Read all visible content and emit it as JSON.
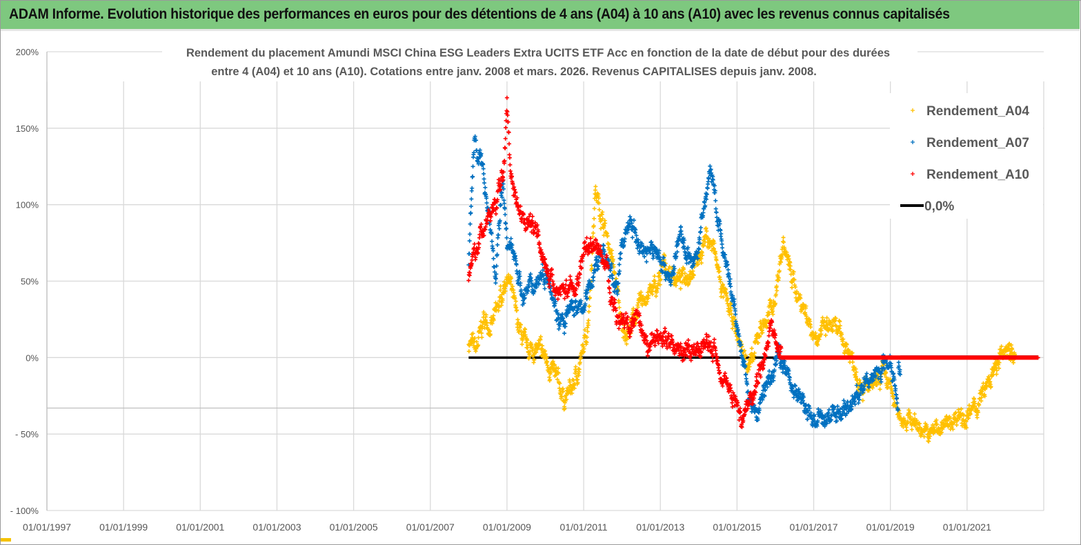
{
  "header": {
    "title": "ADAM Informe. Evolution historique des performances en euros pour des détentions de 4 ans (A04) à 10 ans (A10) avec les revenus connus capitalisés"
  },
  "chart_data": {
    "type": "scatter",
    "title": "Rendement du placement Amundi MSCI  China ESG Leaders Extra UCITS ETF Acc en fonction de la date de début pour des durées",
    "subtitle": "entre 4 (A04) et 10 ans (A10). Cotations entre janv. 2008 et mars. 2026. Revenus CAPITALISES depuis janv. 2008.",
    "xlabel": "",
    "ylabel": "",
    "xlim": [
      "01/01/1997",
      "01/01/2023"
    ],
    "ylim": [
      -100,
      200
    ],
    "x_ticks": [
      "01/01/1997",
      "01/01/1999",
      "01/01/2001",
      "01/01/2003",
      "01/01/2005",
      "01/01/2007",
      "01/01/2009",
      "01/01/2011",
      "01/01/2013",
      "01/01/2015",
      "01/01/2017",
      "01/01/2019",
      "01/01/2021"
    ],
    "y_ticks": [
      "200%",
      "150%",
      "100%",
      "50%",
      "0%",
      "- 50%",
      "- 100%"
    ],
    "y_tick_values": [
      200,
      150,
      100,
      50,
      0,
      -50,
      -100
    ],
    "horizontal_axis_crossing": -33,
    "grid": true,
    "legend_position": "top-right",
    "series": [
      {
        "name": "Rendement_A04",
        "marker": "plus",
        "color": "#ffc000",
        "points": [
          [
            2008.0,
            10
          ],
          [
            2008.2,
            5
          ],
          [
            2008.4,
            25
          ],
          [
            2008.6,
            20
          ],
          [
            2008.8,
            35
          ],
          [
            2009.0,
            55
          ],
          [
            2009.1,
            45
          ],
          [
            2009.3,
            20
          ],
          [
            2009.5,
            5
          ],
          [
            2009.8,
            5
          ],
          [
            2010.0,
            0
          ],
          [
            2010.3,
            -15
          ],
          [
            2010.5,
            -27
          ],
          [
            2010.7,
            -20
          ],
          [
            2010.9,
            -5
          ],
          [
            2011.0,
            5
          ],
          [
            2011.1,
            20
          ],
          [
            2011.2,
            60
          ],
          [
            2011.3,
            110
          ],
          [
            2011.5,
            90
          ],
          [
            2011.7,
            70
          ],
          [
            2011.9,
            40
          ],
          [
            2012.0,
            15
          ],
          [
            2012.2,
            20
          ],
          [
            2012.4,
            30
          ],
          [
            2012.6,
            40
          ],
          [
            2012.9,
            45
          ],
          [
            2013.1,
            60
          ],
          [
            2013.3,
            55
          ],
          [
            2013.5,
            50
          ],
          [
            2013.7,
            55
          ],
          [
            2014.0,
            65
          ],
          [
            2014.2,
            80
          ],
          [
            2014.4,
            70
          ],
          [
            2014.6,
            45
          ],
          [
            2014.8,
            30
          ],
          [
            2015.0,
            15
          ],
          [
            2015.2,
            0
          ],
          [
            2015.4,
            -5
          ],
          [
            2015.6,
            20
          ],
          [
            2015.8,
            25
          ],
          [
            2016.0,
            40
          ],
          [
            2016.2,
            75
          ],
          [
            2016.4,
            55
          ],
          [
            2016.6,
            40
          ],
          [
            2016.8,
            30
          ],
          [
            2017.0,
            15
          ],
          [
            2017.5,
            20
          ],
          [
            2017.8,
            10
          ],
          [
            2018.0,
            0
          ],
          [
            2018.3,
            -20
          ],
          [
            2018.6,
            -20
          ],
          [
            2018.8,
            -10
          ],
          [
            2019.0,
            -20
          ],
          [
            2019.2,
            -38
          ],
          [
            2019.5,
            -40
          ],
          [
            2019.8,
            -45
          ],
          [
            2020.0,
            -52
          ],
          [
            2020.2,
            -45
          ],
          [
            2020.5,
            -45
          ],
          [
            2020.8,
            -35
          ],
          [
            2021.0,
            -40
          ],
          [
            2021.3,
            -30
          ],
          [
            2021.6,
            -15
          ],
          [
            2021.9,
            0
          ],
          [
            2022.1,
            10
          ],
          [
            2022.2,
            0
          ],
          [
            2022.85,
            0
          ]
        ]
      },
      {
        "name": "Rendement_A07",
        "marker": "plus",
        "color": "#0070c0",
        "points": [
          [
            2008.0,
            60
          ],
          [
            2008.15,
            145
          ],
          [
            2008.3,
            130
          ],
          [
            2008.45,
            110
          ],
          [
            2008.6,
            80
          ],
          [
            2008.7,
            50
          ],
          [
            2008.9,
            120
          ],
          [
            2009.0,
            70
          ],
          [
            2009.2,
            70
          ],
          [
            2009.4,
            40
          ],
          [
            2009.6,
            45
          ],
          [
            2009.9,
            55
          ],
          [
            2010.1,
            55
          ],
          [
            2010.3,
            30
          ],
          [
            2010.5,
            20
          ],
          [
            2010.7,
            35
          ],
          [
            2010.9,
            30
          ],
          [
            2011.1,
            40
          ],
          [
            2011.3,
            60
          ],
          [
            2011.5,
            70
          ],
          [
            2011.7,
            55
          ],
          [
            2011.9,
            45
          ],
          [
            2012.0,
            75
          ],
          [
            2012.2,
            90
          ],
          [
            2012.4,
            75
          ],
          [
            2012.6,
            70
          ],
          [
            2012.9,
            70
          ],
          [
            2013.1,
            60
          ],
          [
            2013.3,
            50
          ],
          [
            2013.5,
            80
          ],
          [
            2013.7,
            70
          ],
          [
            2013.9,
            60
          ],
          [
            2014.1,
            90
          ],
          [
            2014.3,
            125
          ],
          [
            2014.5,
            90
          ],
          [
            2014.7,
            60
          ],
          [
            2014.9,
            35
          ],
          [
            2015.1,
            5
          ],
          [
            2015.3,
            -25
          ],
          [
            2015.5,
            -40
          ],
          [
            2015.7,
            -20
          ],
          [
            2015.9,
            -15
          ],
          [
            2016.1,
            5
          ],
          [
            2016.3,
            -10
          ],
          [
            2016.6,
            -25
          ],
          [
            2016.9,
            -38
          ],
          [
            2017.1,
            -42
          ],
          [
            2017.3,
            -40
          ],
          [
            2017.6,
            -35
          ],
          [
            2017.9,
            -33
          ],
          [
            2018.1,
            -25
          ],
          [
            2018.3,
            -20
          ],
          [
            2018.6,
            -10
          ],
          [
            2018.8,
            -5
          ],
          [
            2019.0,
            0
          ],
          [
            2019.15,
            -20
          ],
          [
            2019.2,
            -35
          ],
          [
            2019.21,
            0
          ],
          [
            2022.85,
            0
          ]
        ]
      },
      {
        "name": "Rendement_A10",
        "marker": "plus",
        "color": "#ff0000",
        "points": [
          [
            2008.0,
            50
          ],
          [
            2008.1,
            60
          ],
          [
            2008.3,
            80
          ],
          [
            2008.5,
            90
          ],
          [
            2008.7,
            100
          ],
          [
            2008.9,
            120
          ],
          [
            2009.0,
            165
          ],
          [
            2009.1,
            120
          ],
          [
            2009.3,
            100
          ],
          [
            2009.5,
            90
          ],
          [
            2009.8,
            85
          ],
          [
            2010.0,
            60
          ],
          [
            2010.2,
            45
          ],
          [
            2010.5,
            45
          ],
          [
            2010.8,
            45
          ],
          [
            2011.0,
            70
          ],
          [
            2011.2,
            75
          ],
          [
            2011.4,
            70
          ],
          [
            2011.6,
            60
          ],
          [
            2011.8,
            30
          ],
          [
            2012.0,
            25
          ],
          [
            2012.2,
            20
          ],
          [
            2012.4,
            25
          ],
          [
            2012.6,
            5
          ],
          [
            2012.8,
            10
          ],
          [
            2013.0,
            15
          ],
          [
            2013.3,
            10
          ],
          [
            2013.6,
            5
          ],
          [
            2013.9,
            0
          ],
          [
            2014.1,
            10
          ],
          [
            2014.4,
            5
          ],
          [
            2014.7,
            -15
          ],
          [
            2014.9,
            -25
          ],
          [
            2015.1,
            -40
          ],
          [
            2015.3,
            -30
          ],
          [
            2015.5,
            -15
          ],
          [
            2015.7,
            0
          ],
          [
            2015.9,
            20
          ],
          [
            2016.1,
            5
          ],
          [
            2016.11,
            0
          ],
          [
            2022.85,
            0
          ]
        ]
      },
      {
        "name": "0,0%",
        "marker": "line",
        "color": "#000000",
        "points": [
          [
            2008.0,
            0
          ],
          [
            2016.1,
            0
          ]
        ]
      }
    ]
  }
}
